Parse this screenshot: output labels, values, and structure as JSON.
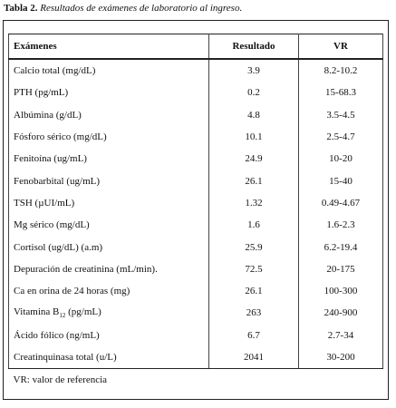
{
  "title": {
    "label": "Tabla 2.",
    "text": "Resultados de exámenes de laboratorio al ingreso."
  },
  "table": {
    "header": [
      "Exámenes",
      "Resultado",
      "VR"
    ],
    "rows": [
      [
        "Calcio total (mg/dL)",
        "3.9",
        "8.2-10.2"
      ],
      [
        "PTH (pg/mL)",
        "0.2",
        "15-68.3"
      ],
      [
        "Albúmina (g/dL)",
        "4.8",
        "3.5-4.5"
      ],
      [
        "Fósforo sérico (mg/dL)",
        "10.1",
        "2.5-4.7"
      ],
      [
        "Fenitoína (ug/mL)",
        "24.9",
        "10-20"
      ],
      [
        "Fenobarbital (ug/mL)",
        "26.1",
        "15-40"
      ],
      [
        "TSH (µUI/mL)",
        "1.32",
        "0.49-4.67"
      ],
      [
        "Mg sérico (mg/dL)",
        "1.6",
        "1.6-2.3"
      ],
      [
        "Cortisol (ug/dL) (a.m)",
        "25.9",
        "6.2-19.4"
      ],
      [
        "Depuración de creatinina (mL/min).",
        "72.5",
        "20-175"
      ],
      [
        "Ca en orina de 24 horas (mg)",
        "26.1",
        "100-300"
      ],
      [
        {
          "text": "Vitamina B",
          "sub": "12",
          "after": " (pg/mL)"
        },
        "263",
        "240-900"
      ],
      [
        "Ácido fólico (ng/mL)",
        "6.7",
        "2.7-34"
      ],
      [
        "Creatinquinasa total (u/L)",
        "2041",
        "30-200"
      ]
    ],
    "footnote": "VR: valor de referencia"
  }
}
